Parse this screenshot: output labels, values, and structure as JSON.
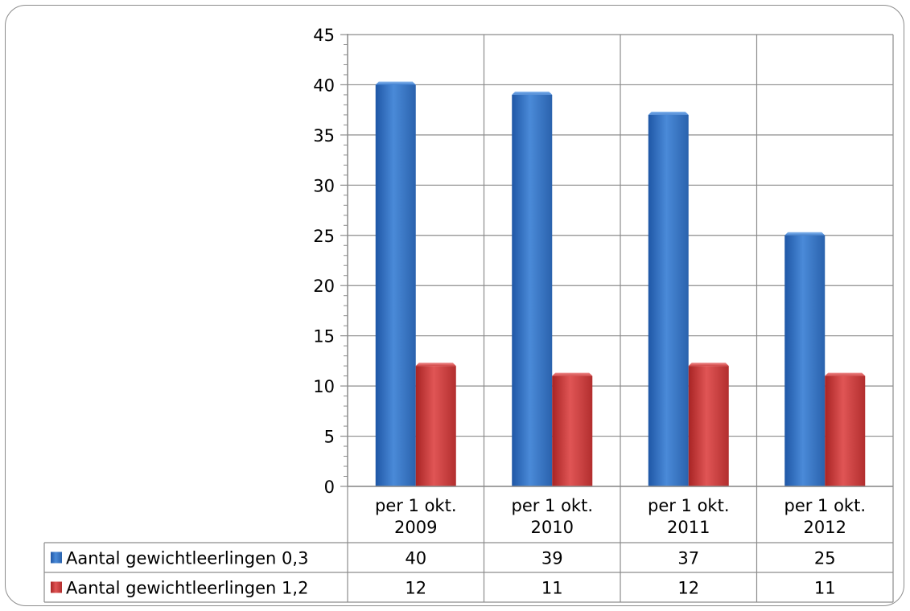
{
  "chart_data": {
    "type": "bar",
    "categories": [
      [
        "per 1 okt.",
        "2009"
      ],
      [
        "per 1 okt.",
        "2010"
      ],
      [
        "per 1 okt.",
        "2011"
      ],
      [
        "per 1 okt.",
        "2012"
      ]
    ],
    "series": [
      {
        "name": "Aantal gewichtleerlingen 0,3",
        "values": [
          40,
          39,
          37,
          25
        ],
        "color": "#3a78c6"
      },
      {
        "name": "Aantal gewichtleerlingen 1,2",
        "values": [
          12,
          11,
          12,
          11
        ],
        "color": "#cf3b3b"
      }
    ],
    "y_ticks": [
      "0",
      "5",
      "10",
      "15",
      "20",
      "25",
      "30",
      "35",
      "40",
      "45"
    ],
    "ylim": [
      0,
      45
    ],
    "grid": true,
    "legend": "data-table",
    "data_table": true
  }
}
